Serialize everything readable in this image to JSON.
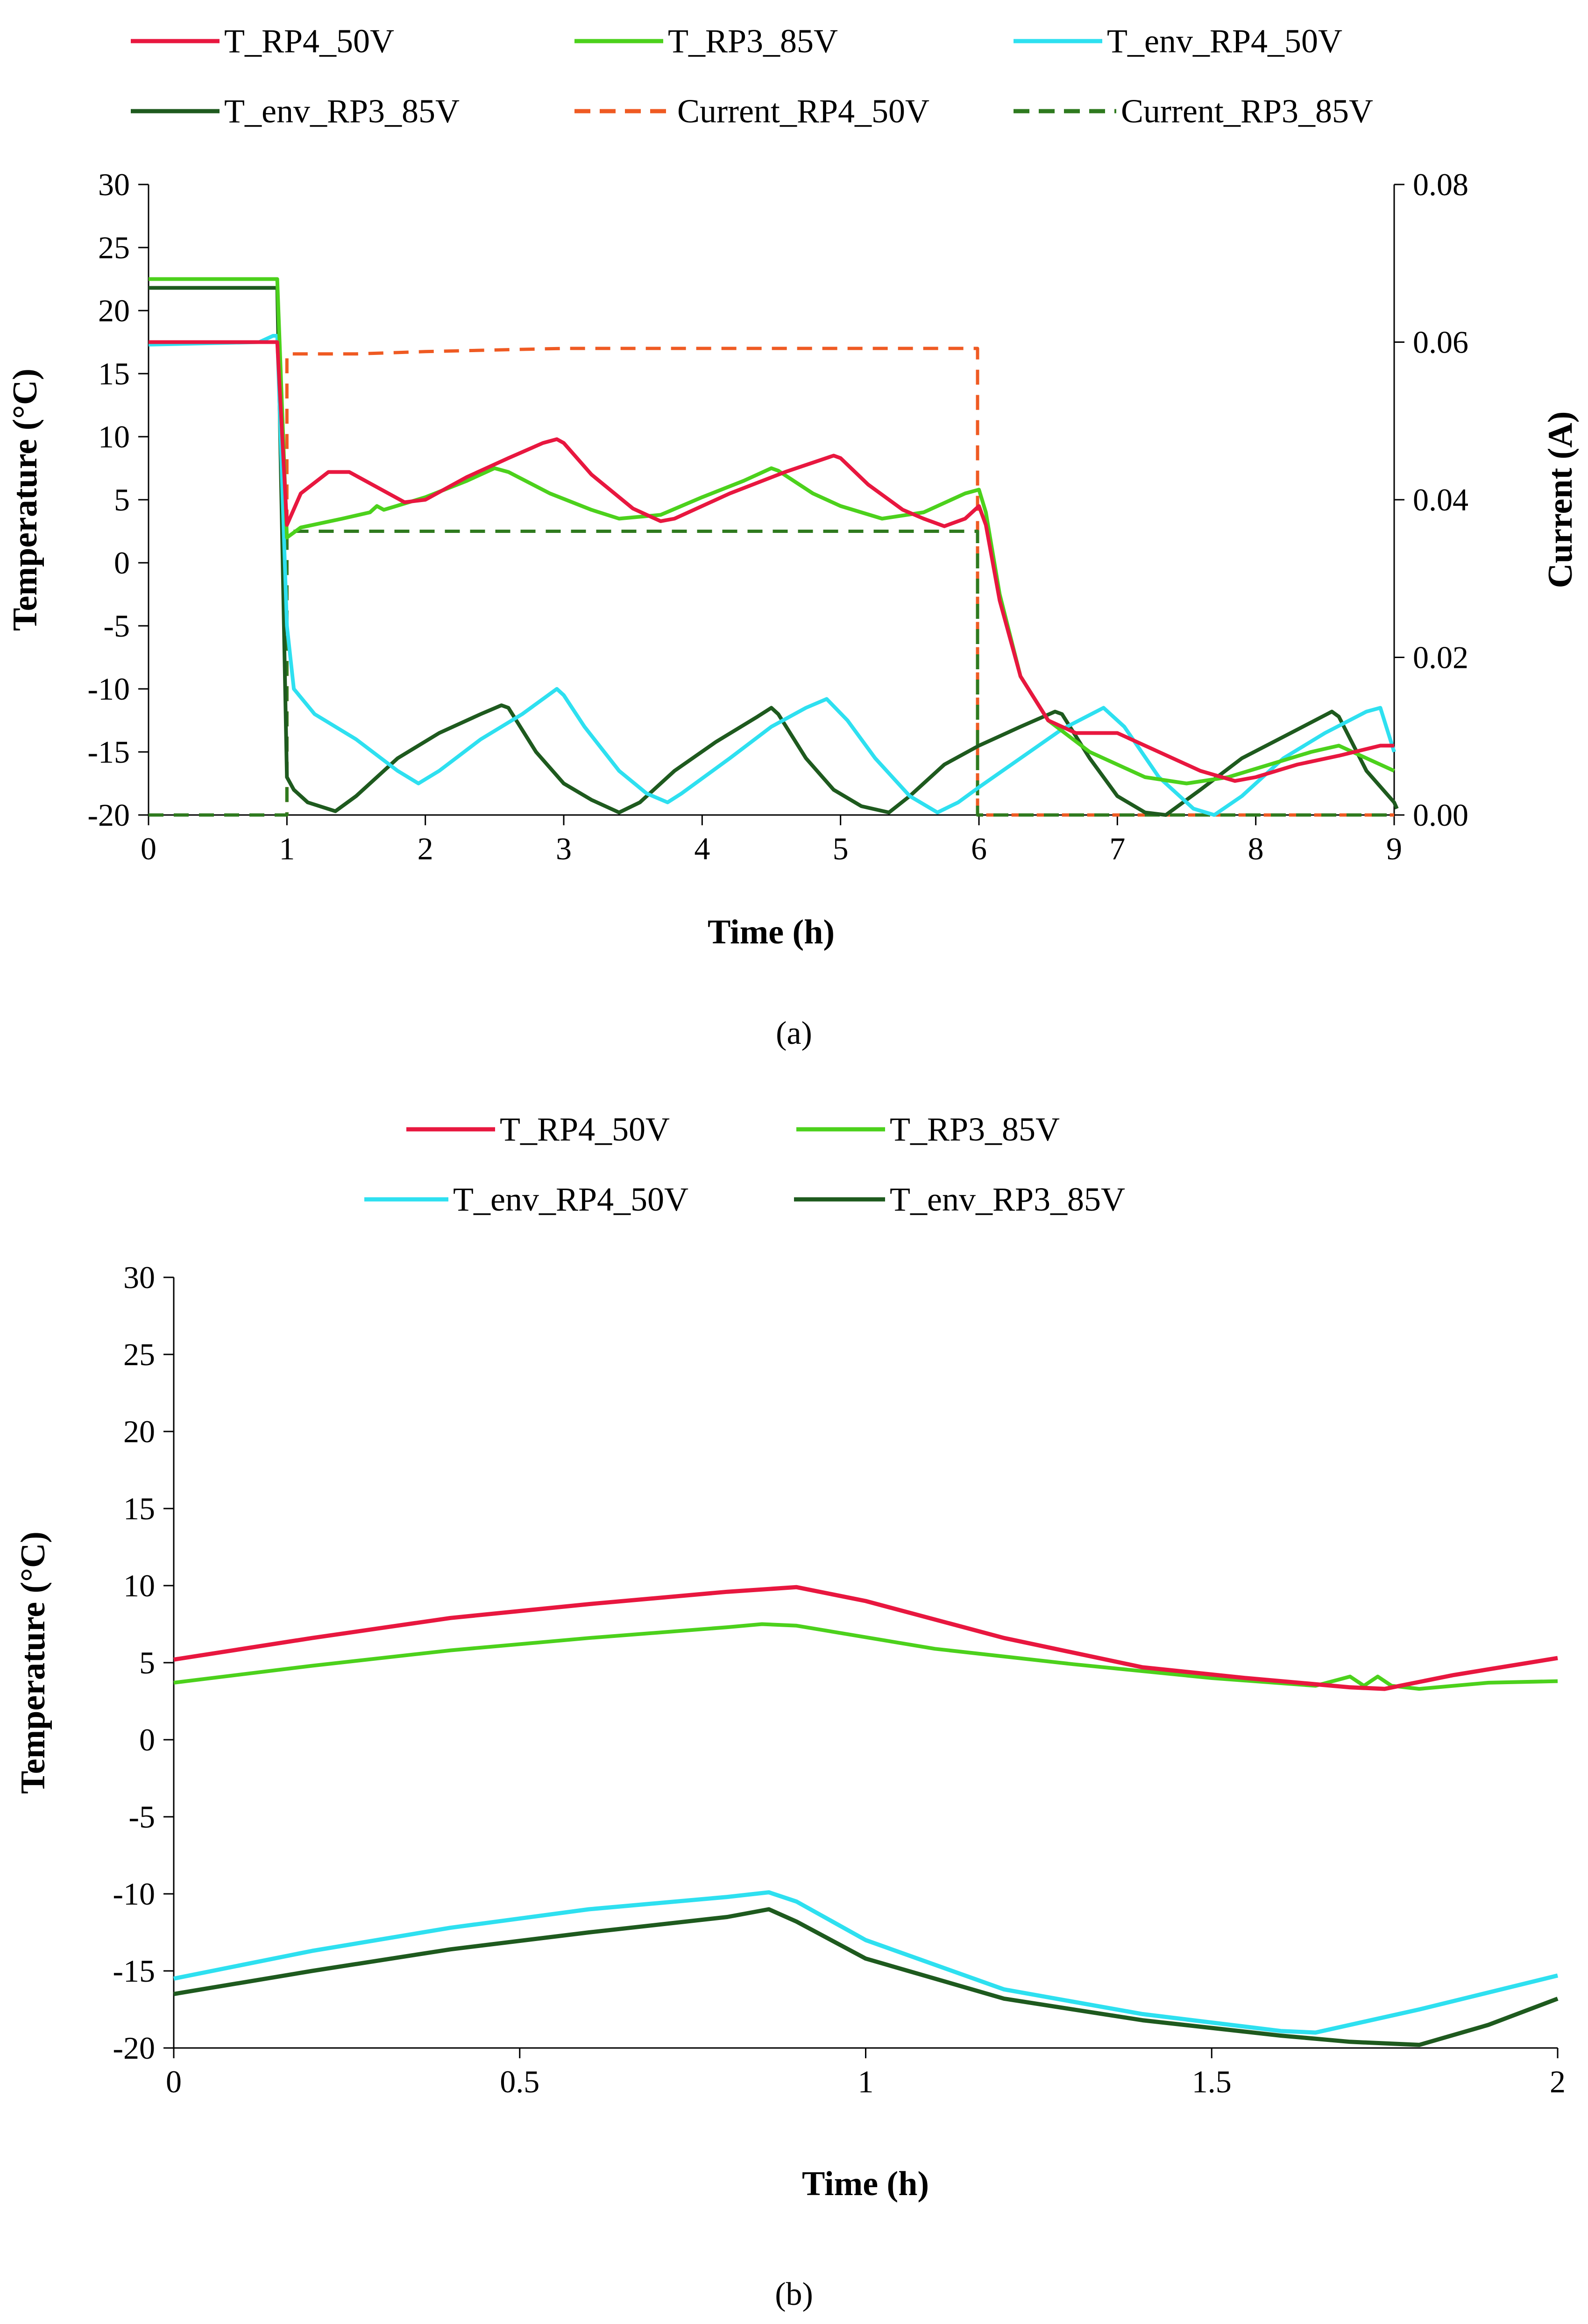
{
  "chart_data": [
    {
      "id": "a",
      "type": "line",
      "caption": "(a)",
      "xlabel": "Time (h)",
      "ylabel": "Temperature (°C)",
      "y2label": "Current (A)",
      "xlim": [
        0,
        9
      ],
      "ylim": [
        -20,
        30
      ],
      "y2lim": [
        0,
        0.08
      ],
      "xticks": [
        "0",
        "1",
        "2",
        "3",
        "4",
        "5",
        "6",
        "7",
        "8",
        "9"
      ],
      "yticks": [
        "-20",
        "-15",
        "-10",
        "-5",
        "0",
        "5",
        "10",
        "15",
        "20",
        "25",
        "30"
      ],
      "y2ticks": [
        "0.00",
        "0.02",
        "0.04",
        "0.06",
        "0.08"
      ],
      "legend_position": "top",
      "grid": false,
      "series": [
        {
          "name": "T_RP4_50V",
          "color": "#e8173f",
          "dash": false,
          "axis": "left",
          "points": [
            [
              0,
              17.5
            ],
            [
              0.9,
              17.5
            ],
            [
              0.93,
              17.5
            ],
            [
              1.0,
              3
            ],
            [
              1.1,
              5.5
            ],
            [
              1.3,
              7.2
            ],
            [
              1.45,
              7.2
            ],
            [
              1.65,
              6
            ],
            [
              1.85,
              4.8
            ],
            [
              2.0,
              5
            ],
            [
              2.3,
              6.8
            ],
            [
              2.6,
              8.3
            ],
            [
              2.85,
              9.5
            ],
            [
              2.95,
              9.8
            ],
            [
              3.0,
              9.5
            ],
            [
              3.2,
              7
            ],
            [
              3.5,
              4.3
            ],
            [
              3.7,
              3.3
            ],
            [
              3.8,
              3.5
            ],
            [
              4.2,
              5.5
            ],
            [
              4.6,
              7.2
            ],
            [
              4.95,
              8.5
            ],
            [
              5.0,
              8.3
            ],
            [
              5.2,
              6.2
            ],
            [
              5.45,
              4.2
            ],
            [
              5.6,
              3.5
            ],
            [
              5.75,
              2.9
            ],
            [
              5.9,
              3.5
            ],
            [
              6.0,
              4.5
            ],
            [
              6.05,
              3
            ],
            [
              6.15,
              -3
            ],
            [
              6.3,
              -9
            ],
            [
              6.5,
              -12.5
            ],
            [
              6.7,
              -13.5
            ],
            [
              7.0,
              -13.5
            ],
            [
              7.3,
              -15
            ],
            [
              7.6,
              -16.5
            ],
            [
              7.85,
              -17.3
            ],
            [
              8.0,
              -17
            ],
            [
              8.3,
              -16
            ],
            [
              8.6,
              -15.3
            ],
            [
              8.9,
              -14.5
            ],
            [
              9.0,
              -14.5
            ]
          ]
        },
        {
          "name": "T_RP3_85V",
          "color": "#4cd11c",
          "dash": false,
          "axis": "left",
          "points": [
            [
              0,
              22.5
            ],
            [
              0.9,
              22.5
            ],
            [
              0.93,
              22.5
            ],
            [
              1.0,
              2
            ],
            [
              1.1,
              2.8
            ],
            [
              1.4,
              3.5
            ],
            [
              1.6,
              4
            ],
            [
              1.65,
              4.5
            ],
            [
              1.7,
              4.2
            ],
            [
              2.0,
              5.2
            ],
            [
              2.3,
              6.5
            ],
            [
              2.5,
              7.5
            ],
            [
              2.6,
              7.2
            ],
            [
              2.9,
              5.5
            ],
            [
              3.2,
              4.2
            ],
            [
              3.4,
              3.5
            ],
            [
              3.7,
              3.8
            ],
            [
              4.0,
              5.2
            ],
            [
              4.3,
              6.5
            ],
            [
              4.5,
              7.5
            ],
            [
              4.55,
              7.3
            ],
            [
              4.8,
              5.5
            ],
            [
              5.0,
              4.5
            ],
            [
              5.3,
              3.5
            ],
            [
              5.6,
              4
            ],
            [
              5.9,
              5.5
            ],
            [
              6.0,
              5.8
            ],
            [
              6.05,
              4
            ],
            [
              6.15,
              -2.5
            ],
            [
              6.3,
              -9
            ],
            [
              6.5,
              -12.5
            ],
            [
              6.8,
              -15
            ],
            [
              7.2,
              -17
            ],
            [
              7.5,
              -17.5
            ],
            [
              7.8,
              -17
            ],
            [
              8.1,
              -16
            ],
            [
              8.4,
              -15
            ],
            [
              8.6,
              -14.5
            ],
            [
              8.8,
              -15.5
            ],
            [
              9.0,
              -16.5
            ]
          ]
        },
        {
          "name": "T_env_RP4_50V",
          "color": "#2ee0f0",
          "dash": false,
          "axis": "left",
          "points": [
            [
              0,
              17.3
            ],
            [
              0.8,
              17.5
            ],
            [
              0.9,
              18
            ],
            [
              0.93,
              18
            ],
            [
              1.0,
              -5
            ],
            [
              1.05,
              -10
            ],
            [
              1.2,
              -12
            ],
            [
              1.5,
              -14
            ],
            [
              1.8,
              -16.5
            ],
            [
              1.95,
              -17.5
            ],
            [
              2.1,
              -16.5
            ],
            [
              2.4,
              -14
            ],
            [
              2.7,
              -12
            ],
            [
              2.95,
              -10
            ],
            [
              3.0,
              -10.5
            ],
            [
              3.15,
              -13
            ],
            [
              3.4,
              -16.5
            ],
            [
              3.6,
              -18.3
            ],
            [
              3.75,
              -19
            ],
            [
              3.85,
              -18.3
            ],
            [
              4.2,
              -15.5
            ],
            [
              4.5,
              -13
            ],
            [
              4.75,
              -11.5
            ],
            [
              4.9,
              -10.8
            ],
            [
              5.05,
              -12.5
            ],
            [
              5.25,
              -15.5
            ],
            [
              5.5,
              -18.5
            ],
            [
              5.7,
              -19.8
            ],
            [
              5.85,
              -19
            ],
            [
              6.0,
              -17.8
            ],
            [
              6.3,
              -15.5
            ],
            [
              6.6,
              -13.2
            ],
            [
              6.9,
              -11.5
            ],
            [
              7.05,
              -13
            ],
            [
              7.3,
              -17
            ],
            [
              7.55,
              -19.5
            ],
            [
              7.7,
              -20
            ],
            [
              7.9,
              -18.5
            ],
            [
              8.2,
              -15.5
            ],
            [
              8.5,
              -13.5
            ],
            [
              8.8,
              -11.8
            ],
            [
              8.9,
              -11.5
            ],
            [
              9.0,
              -15
            ]
          ]
        },
        {
          "name": "T_env_RP3_85V",
          "color": "#1e5a1e",
          "dash": false,
          "axis": "left",
          "points": [
            [
              0,
              21.8
            ],
            [
              0.9,
              21.8
            ],
            [
              0.93,
              21.8
            ],
            [
              1.0,
              -17
            ],
            [
              1.05,
              -18
            ],
            [
              1.15,
              -19
            ],
            [
              1.35,
              -19.7
            ],
            [
              1.5,
              -18.5
            ],
            [
              1.8,
              -15.5
            ],
            [
              2.1,
              -13.5
            ],
            [
              2.4,
              -12
            ],
            [
              2.55,
              -11.3
            ],
            [
              2.6,
              -11.5
            ],
            [
              2.8,
              -15
            ],
            [
              3.0,
              -17.5
            ],
            [
              3.2,
              -18.8
            ],
            [
              3.4,
              -19.8
            ],
            [
              3.55,
              -19
            ],
            [
              3.8,
              -16.5
            ],
            [
              4.1,
              -14.2
            ],
            [
              4.4,
              -12.2
            ],
            [
              4.5,
              -11.5
            ],
            [
              4.55,
              -12
            ],
            [
              4.75,
              -15.5
            ],
            [
              4.95,
              -18
            ],
            [
              5.15,
              -19.3
            ],
            [
              5.35,
              -19.8
            ],
            [
              5.5,
              -18.5
            ],
            [
              5.75,
              -16
            ],
            [
              6.0,
              -14.5
            ],
            [
              6.3,
              -13
            ],
            [
              6.55,
              -11.8
            ],
            [
              6.6,
              -12
            ],
            [
              6.8,
              -15.5
            ],
            [
              7.0,
              -18.5
            ],
            [
              7.2,
              -19.8
            ],
            [
              7.35,
              -20
            ],
            [
              7.6,
              -18
            ],
            [
              7.9,
              -15.5
            ],
            [
              8.2,
              -13.8
            ],
            [
              8.55,
              -11.8
            ],
            [
              8.6,
              -12.2
            ],
            [
              8.8,
              -16.5
            ],
            [
              9.0,
              -19
            ],
            [
              9.02,
              -19.5
            ]
          ]
        },
        {
          "name": "Current_RP4_50V",
          "color": "#ef5a22",
          "dash": true,
          "axis": "right",
          "points": [
            [
              0,
              0
            ],
            [
              1.0,
              0
            ],
            [
              1.0,
              0.0585
            ],
            [
              1.5,
              0.0585
            ],
            [
              2.0,
              0.0588
            ],
            [
              3.0,
              0.0592
            ],
            [
              4.0,
              0.0592
            ],
            [
              5.0,
              0.0592
            ],
            [
              5.99,
              0.0592
            ],
            [
              5.99,
              0
            ],
            [
              9.0,
              0
            ]
          ]
        },
        {
          "name": "Current_RP3_85V",
          "color": "#2e7a1e",
          "dash": true,
          "axis": "right",
          "points": [
            [
              0,
              0
            ],
            [
              1.0,
              0
            ],
            [
              1.0,
              0.036
            ],
            [
              5.99,
              0.036
            ],
            [
              5.99,
              0
            ],
            [
              9.0,
              0
            ]
          ]
        }
      ]
    },
    {
      "id": "b",
      "type": "line",
      "caption": "(b)",
      "xlabel": "Time (h)",
      "ylabel": "Temperature (°C)",
      "xlim": [
        0,
        2
      ],
      "ylim": [
        -20,
        30
      ],
      "xticks": [
        "0",
        "0.5",
        "1",
        "1.5",
        "2"
      ],
      "yticks": [
        "-20",
        "-15",
        "-10",
        "-5",
        "0",
        "5",
        "10",
        "15",
        "20",
        "25",
        "30"
      ],
      "legend_position": "top",
      "grid": false,
      "series": [
        {
          "name": "T_RP4_50V",
          "color": "#e8173f",
          "points": [
            [
              0,
              5.2
            ],
            [
              0.2,
              6.6
            ],
            [
              0.4,
              7.9
            ],
            [
              0.6,
              8.8
            ],
            [
              0.8,
              9.6
            ],
            [
              0.9,
              9.9
            ],
            [
              1.0,
              9
            ],
            [
              1.2,
              6.6
            ],
            [
              1.4,
              4.7
            ],
            [
              1.55,
              4
            ],
            [
              1.7,
              3.4
            ],
            [
              1.75,
              3.3
            ],
            [
              1.85,
              4.2
            ],
            [
              2.0,
              5.3
            ]
          ]
        },
        {
          "name": "T_RP3_85V",
          "color": "#4cd11c",
          "points": [
            [
              0,
              3.7
            ],
            [
              0.2,
              4.8
            ],
            [
              0.4,
              5.8
            ],
            [
              0.6,
              6.6
            ],
            [
              0.8,
              7.3
            ],
            [
              0.85,
              7.5
            ],
            [
              0.9,
              7.4
            ],
            [
              1.1,
              5.9
            ],
            [
              1.3,
              4.9
            ],
            [
              1.5,
              4
            ],
            [
              1.65,
              3.5
            ],
            [
              1.7,
              4.1
            ],
            [
              1.72,
              3.5
            ],
            [
              1.74,
              4.1
            ],
            [
              1.76,
              3.5
            ],
            [
              1.8,
              3.3
            ],
            [
              1.9,
              3.7
            ],
            [
              2.0,
              3.8
            ]
          ]
        },
        {
          "name": "T_env_RP4_50V",
          "color": "#2ee0f0",
          "points": [
            [
              0,
              -15.5
            ],
            [
              0.2,
              -13.7
            ],
            [
              0.4,
              -12.2
            ],
            [
              0.6,
              -11
            ],
            [
              0.8,
              -10.2
            ],
            [
              0.86,
              -9.9
            ],
            [
              0.9,
              -10.5
            ],
            [
              1.0,
              -13
            ],
            [
              1.2,
              -16.2
            ],
            [
              1.4,
              -17.8
            ],
            [
              1.6,
              -18.9
            ],
            [
              1.65,
              -19
            ],
            [
              1.8,
              -17.5
            ],
            [
              2.0,
              -15.3
            ]
          ]
        },
        {
          "name": "T_env_RP3_85V",
          "color": "#1e5a1e",
          "points": [
            [
              0,
              -16.5
            ],
            [
              0.2,
              -15
            ],
            [
              0.4,
              -13.6
            ],
            [
              0.6,
              -12.5
            ],
            [
              0.8,
              -11.5
            ],
            [
              0.86,
              -11
            ],
            [
              0.9,
              -11.8
            ],
            [
              1.0,
              -14.2
            ],
            [
              1.2,
              -16.8
            ],
            [
              1.4,
              -18.2
            ],
            [
              1.6,
              -19.2
            ],
            [
              1.7,
              -19.6
            ],
            [
              1.8,
              -19.8
            ],
            [
              1.9,
              -18.5
            ],
            [
              2.0,
              -16.8
            ]
          ]
        }
      ]
    }
  ]
}
